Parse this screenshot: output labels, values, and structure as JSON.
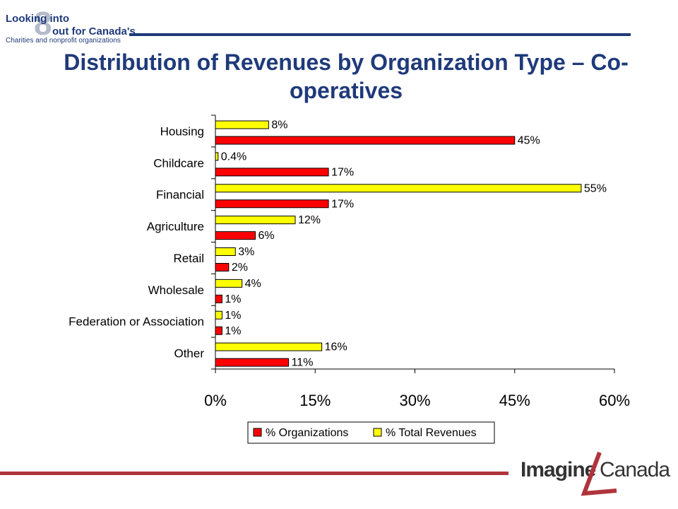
{
  "branding": {
    "top_logo_line1": "Looking into",
    "top_logo_line2": "out for Canada's",
    "top_logo_line3": "Charities and nonprofit organizations",
    "top_logo_mark": "8",
    "bottom_logo_part1": "Imagine",
    "bottom_logo_part2": "Canada",
    "top_rule_color": "#1f3a7a",
    "bottom_rule_color": "#b0343c",
    "accent_mark_color": "#b0343c"
  },
  "chart_data": {
    "type": "bar",
    "orientation": "horizontal",
    "title": "Distribution of Revenues by Organization Type – Co-operatives",
    "categories": [
      "Housing",
      "Childcare",
      "Financial",
      "Agriculture",
      "Retail",
      "Wholesale",
      "Federation or Association",
      "Other"
    ],
    "series": [
      {
        "name": "% Total Revenues",
        "color": "#ffff00",
        "values": [
          8,
          0.4,
          55,
          12,
          3,
          4,
          1,
          16
        ],
        "labels": [
          "8%",
          "0.4%",
          "55%",
          "12%",
          "3%",
          "4%",
          "1%",
          "16%"
        ]
      },
      {
        "name": "% Organizations",
        "color": "#ff0000",
        "values": [
          45,
          17,
          17,
          6,
          2,
          1,
          1,
          11
        ],
        "labels": [
          "45%",
          "17%",
          "17%",
          "6%",
          "2%",
          "1%",
          "1%",
          "11%"
        ]
      }
    ],
    "xlim": [
      0,
      60
    ],
    "xticks": [
      0,
      15,
      30,
      45,
      60
    ],
    "xtick_labels": [
      "0%",
      "15%",
      "30%",
      "45%",
      "60%"
    ],
    "legend": {
      "placement": "bottom",
      "entries": [
        "% Organizations",
        "% Total Revenues"
      ]
    },
    "grid": false
  }
}
